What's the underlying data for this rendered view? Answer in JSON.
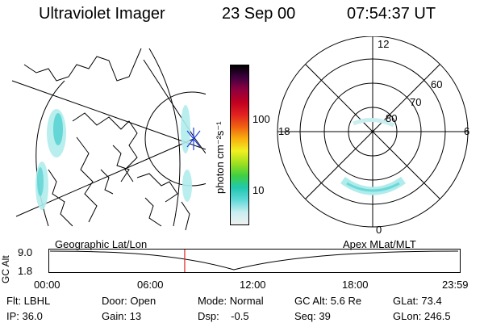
{
  "header": {
    "title": "Ultraviolet Imager",
    "date": "23 Sep 00",
    "time": "07:54:37 UT"
  },
  "colorbar": {
    "unit": "photon cm⁻²s⁻¹",
    "ticks": [
      "100",
      "10"
    ],
    "colors": [
      "#f0f0f0",
      "#c8eef0",
      "#60d8d8",
      "#20c8b0",
      "#40d040",
      "#a0e020",
      "#f0f020",
      "#f8b010",
      "#f06010",
      "#e02020",
      "#c00020",
      "#900040",
      "#400040",
      "#000000"
    ]
  },
  "polar": {
    "mlt_labels": {
      "top": "12",
      "left": "18",
      "right": "6",
      "bottom": "0"
    },
    "lat_labels": [
      "80",
      "70",
      "60"
    ]
  },
  "timeline": {
    "left_title": "Geographic Lat/Lon",
    "right_title": "Apex MLat/MLT",
    "y_axis_label": "GC Alt",
    "y_ticks": [
      "9.0",
      "1.8"
    ],
    "x_ticks": [
      "00:00",
      "06:00",
      "12:00",
      "18:00",
      "23:59"
    ],
    "current_time_fraction": 0.33
  },
  "info": {
    "row1": [
      "Flt: LBHL",
      "Door: Open",
      "Mode: Normal",
      "GC Alt: 5.6 Re",
      "GLat: 73.4"
    ],
    "row2": [
      "IP: 36.0",
      "Gain: 13",
      "Dsp:    -0.5",
      "Seq: 39",
      "GLon: 246.5"
    ]
  },
  "colors": {
    "aurora": "#50d0d0",
    "aurora_light": "#b0ecec",
    "marker": "#e02020",
    "pole_marker": "#2040e0"
  }
}
